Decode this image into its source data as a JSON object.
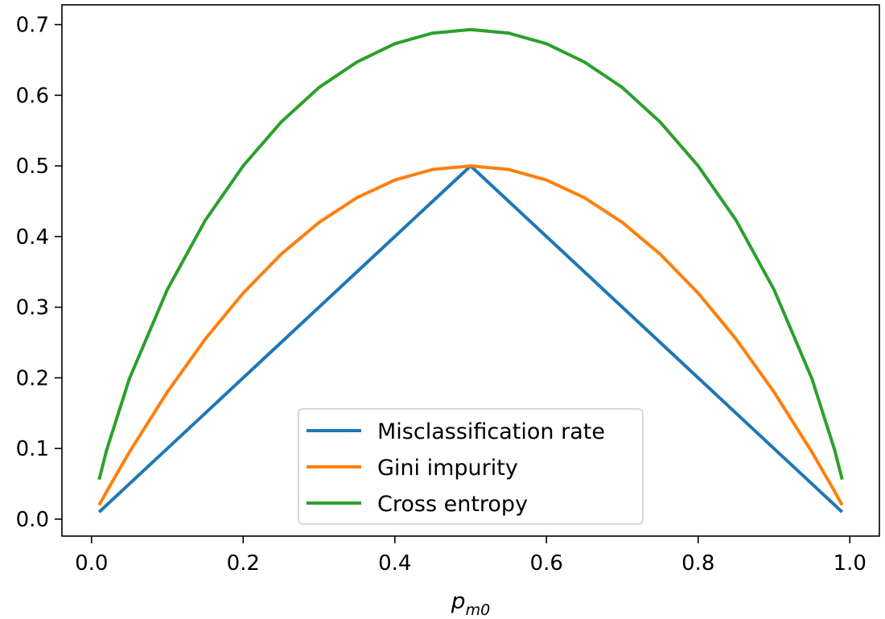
{
  "chart_data": {
    "type": "line",
    "title": "",
    "xlabel": {
      "base": "p",
      "subscript": "m0"
    },
    "ylabel": "",
    "xlim": [
      -0.039,
      1.039
    ],
    "ylim": [
      -0.024,
      0.728
    ],
    "xticks": [
      0.0,
      0.2,
      0.4,
      0.6,
      0.8,
      1.0
    ],
    "xtick_labels": [
      "0.0",
      "0.2",
      "0.4",
      "0.6",
      "0.8",
      "1.0"
    ],
    "yticks": [
      0.0,
      0.1,
      0.2,
      0.3,
      0.4,
      0.5,
      0.6,
      0.7
    ],
    "ytick_labels": [
      "0.0",
      "0.1",
      "0.2",
      "0.3",
      "0.4",
      "0.5",
      "0.6",
      "0.7"
    ],
    "grid": false,
    "legend_position": "bottom-center",
    "x": [
      0.01,
      0.02,
      0.05,
      0.1,
      0.15,
      0.2,
      0.25,
      0.3,
      0.35,
      0.4,
      0.45,
      0.5,
      0.55,
      0.6,
      0.65,
      0.7,
      0.75,
      0.8,
      0.85,
      0.9,
      0.95,
      0.98,
      0.99
    ],
    "series": [
      {
        "name": "Misclassification rate",
        "color": "#1f77b4",
        "values": [
          0.01,
          0.02,
          0.05,
          0.1,
          0.15,
          0.2,
          0.25,
          0.3,
          0.35,
          0.4,
          0.45,
          0.5,
          0.45,
          0.4,
          0.35,
          0.3,
          0.25,
          0.2,
          0.15,
          0.1,
          0.05,
          0.02,
          0.01
        ]
      },
      {
        "name": "Gini impurity",
        "color": "#ff7f0e",
        "values": [
          0.0198,
          0.0392,
          0.095,
          0.18,
          0.255,
          0.32,
          0.375,
          0.42,
          0.455,
          0.48,
          0.495,
          0.5,
          0.495,
          0.48,
          0.455,
          0.42,
          0.375,
          0.32,
          0.255,
          0.18,
          0.095,
          0.0392,
          0.0198
        ]
      },
      {
        "name": "Cross entropy",
        "color": "#2ca02c",
        "values": [
          0.056,
          0.098,
          0.199,
          0.325,
          0.423,
          0.5,
          0.562,
          0.611,
          0.647,
          0.673,
          0.688,
          0.693,
          0.688,
          0.673,
          0.647,
          0.611,
          0.562,
          0.5,
          0.423,
          0.325,
          0.199,
          0.098,
          0.056
        ]
      }
    ]
  }
}
